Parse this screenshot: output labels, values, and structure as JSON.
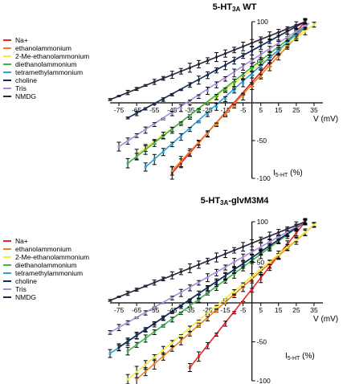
{
  "legend": [
    {
      "name": "Na+",
      "color": "#e8252a"
    },
    {
      "name": "ethanolammonium",
      "color": "#ef7f22"
    },
    {
      "name": "2-Me-ethanolammonium",
      "color": "#f2ec3c"
    },
    {
      "name": "diethanolammonium",
      "color": "#3fb14e"
    },
    {
      "name": "tetramethylammonium",
      "color": "#2f9fd8"
    },
    {
      "name": "choline",
      "color": "#152c55"
    },
    {
      "name": "Tris",
      "color": "#a98fd8"
    },
    {
      "name": "NMDG",
      "color": "#2b2440"
    }
  ],
  "chart_data": [
    {
      "type": "line",
      "title": "5-HT 3A WT",
      "xlabel": "V  (mV)",
      "ylabel": "I5-HT (%)",
      "xlim": [
        -80,
        40
      ],
      "ylim": [
        -100,
        100
      ],
      "x_ticks": [
        -75,
        -65,
        -55,
        -45,
        -35,
        -25,
        -15,
        -5,
        5,
        15,
        25,
        35
      ],
      "x_tick_labels": [
        "-75",
        "-65",
        "-55",
        "-45",
        "-35",
        "-25",
        "-15",
        "-5",
        "5",
        "15",
        "25",
        "35"
      ],
      "y_ticks": [
        100,
        50,
        -50,
        -100
      ],
      "y_tick_labels": [
        "100",
        "50",
        "-50",
        "-100"
      ],
      "grid": false,
      "legend_position": "left",
      "series": [
        {
          "name": "Na+",
          "x0": -45,
          "y0": -93,
          "x1": 30,
          "y1": 100
        },
        {
          "name": "ethanolammonium",
          "x0": -45,
          "y0": -90,
          "x1": 32,
          "y1": 98
        },
        {
          "name": "2-Me-ethanolammonium",
          "x0": -65,
          "y0": -68,
          "x1": 36,
          "y1": 98
        },
        {
          "name": "diethanolammonium",
          "x0": -70,
          "y0": -80,
          "x1": 32,
          "y1": 98
        },
        {
          "name": "tetramethylammonium",
          "x0": -60,
          "y0": -85,
          "x1": 32,
          "y1": 98
        },
        {
          "name": "choline",
          "x0": -70,
          "y0": -20,
          "x1": 30,
          "y1": 100
        },
        {
          "name": "Tris",
          "x0": -75,
          "y0": -58,
          "x1": 32,
          "y1": 98
        },
        {
          "name": "NMDG",
          "x0": -80,
          "y0": 4,
          "x1": 30,
          "y1": 100
        }
      ]
    },
    {
      "type": "line",
      "title": "5-HT3A-glvM3M4",
      "xlabel": "V  (mV)",
      "ylabel": "I5-HT (%)",
      "xlim": [
        -80,
        40
      ],
      "ylim": [
        -100,
        100
      ],
      "x_ticks": [
        -75,
        -65,
        -55,
        -45,
        -35,
        -25,
        -15,
        -5,
        5,
        15,
        25,
        35
      ],
      "x_tick_labels": [
        "-75",
        "-65",
        "-55",
        "-45",
        "-35",
        "-25",
        "-15",
        "-5",
        "5",
        "15",
        "25",
        "35"
      ],
      "y_ticks": [
        100,
        50,
        -50,
        -100
      ],
      "y_tick_labels": [
        "100",
        "50",
        "-50",
        "-100"
      ],
      "grid": false,
      "legend_position": "left",
      "series": [
        {
          "name": "Na+",
          "x0": -35,
          "y0": -83,
          "x1": 30,
          "y1": 100
        },
        {
          "name": "ethanolammonium",
          "x0": -65,
          "y0": -98,
          "x1": 36,
          "y1": 98
        },
        {
          "name": "2-Me-ethanolammonium",
          "x0": -70,
          "y0": -98,
          "x1": 36,
          "y1": 98
        },
        {
          "name": "diethanolammonium",
          "x0": -70,
          "y0": -62,
          "x1": 30,
          "y1": 100
        },
        {
          "name": "tetramethylammonium",
          "x0": -80,
          "y0": -65,
          "x1": 30,
          "y1": 100
        },
        {
          "name": "choline",
          "x0": -75,
          "y0": -57,
          "x1": 30,
          "y1": 100
        },
        {
          "name": "Tris",
          "x0": -80,
          "y0": -38,
          "x1": 30,
          "y1": 100
        },
        {
          "name": "NMDG",
          "x0": -80,
          "y0": 3,
          "x1": 30,
          "y1": 100
        }
      ]
    }
  ]
}
